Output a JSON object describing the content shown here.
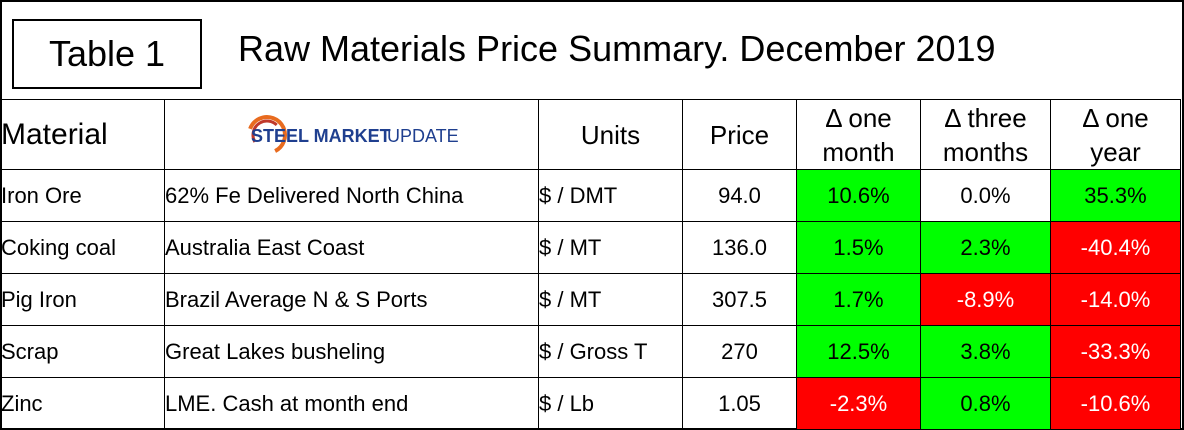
{
  "header": {
    "table_label": "Table 1",
    "title": "Raw Materials Price Summary. December 2019"
  },
  "logo": {
    "brand_part1": "STEEL MARKET",
    "brand_part2": " UPDATE",
    "brand_color": "#1f3f8f",
    "accent_color": "#e86b1f"
  },
  "columns": {
    "material": "Material",
    "units": "Units",
    "price": "Price",
    "chg_one_month": [
      "Δ one",
      "month"
    ],
    "chg_three_months": [
      "Δ three",
      "months"
    ],
    "chg_one_year": [
      "Δ one",
      "year"
    ]
  },
  "colors": {
    "positive_bg": "#00ff00",
    "negative_bg": "#ff0000"
  },
  "rows": [
    {
      "material": "Iron Ore",
      "source": "62% Fe Delivered North China",
      "units": "$ / DMT",
      "price": "94.0",
      "chg": [
        {
          "value": "10.6%",
          "status": "up"
        },
        {
          "value": "0.0%",
          "status": "none"
        },
        {
          "value": "35.3%",
          "status": "up"
        }
      ]
    },
    {
      "material": "Coking coal",
      "source": "Australia East Coast",
      "units": "$ / MT",
      "price": "136.0",
      "chg": [
        {
          "value": "1.5%",
          "status": "up"
        },
        {
          "value": "2.3%",
          "status": "up"
        },
        {
          "value": "-40.4%",
          "status": "down"
        }
      ]
    },
    {
      "material": "Pig Iron",
      "source": "Brazil Average N & S Ports",
      "units": "$ / MT",
      "price": "307.5",
      "chg": [
        {
          "value": "1.7%",
          "status": "up"
        },
        {
          "value": "-8.9%",
          "status": "down"
        },
        {
          "value": "-14.0%",
          "status": "down"
        }
      ]
    },
    {
      "material": "Scrap",
      "source": "Great Lakes busheling",
      "units": "$ / Gross T",
      "price": "270",
      "chg": [
        {
          "value": "12.5%",
          "status": "up"
        },
        {
          "value": "3.8%",
          "status": "up"
        },
        {
          "value": "-33.3%",
          "status": "down"
        }
      ]
    },
    {
      "material": "Zinc",
      "source": "LME. Cash at month end",
      "units": "$ / Lb",
      "price": "1.05",
      "chg": [
        {
          "value": "-2.3%",
          "status": "down"
        },
        {
          "value": "0.8%",
          "status": "up"
        },
        {
          "value": "-10.6%",
          "status": "down"
        }
      ]
    }
  ]
}
